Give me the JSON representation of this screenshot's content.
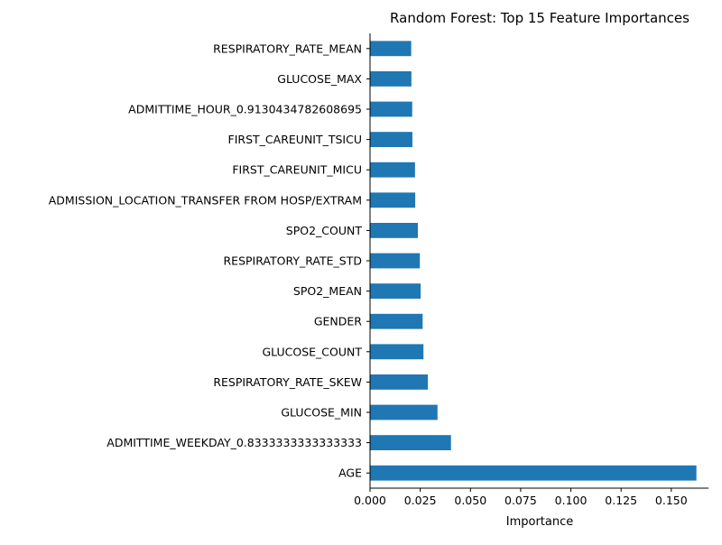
{
  "chart_data": {
    "type": "bar",
    "orientation": "horizontal",
    "title": "Random Forest: Top 15 Feature Importances",
    "xlabel": "Importance",
    "ylabel": "",
    "xlim": [
      0.0,
      0.1685
    ],
    "xticks": [
      0.0,
      0.025,
      0.05,
      0.075,
      0.1,
      0.125,
      0.15
    ],
    "xtick_labels": [
      "0.000",
      "0.025",
      "0.050",
      "0.075",
      "0.100",
      "0.125",
      "0.150"
    ],
    "grid": false,
    "bar_color": "#1f77b4",
    "categories": [
      "RESPIRATORY_RATE_MEAN",
      "GLUCOSE_MAX",
      "ADMITTIME_HOUR_0.9130434782608695",
      "FIRST_CAREUNIT_TSICU",
      "FIRST_CAREUNIT_MICU",
      "ADMISSION_LOCATION_TRANSFER FROM HOSP/EXTRAM",
      "SPO2_COUNT",
      "RESPIRATORY_RATE_STD",
      "SPO2_MEAN",
      "GENDER",
      "GLUCOSE_COUNT",
      "RESPIRATORY_RATE_SKEW",
      "GLUCOSE_MIN",
      "ADMITTIME_WEEKDAY_0.8333333333333333",
      "AGE"
    ],
    "values": [
      0.0205,
      0.0206,
      0.021,
      0.0211,
      0.0224,
      0.0225,
      0.0238,
      0.0248,
      0.0252,
      0.0262,
      0.0266,
      0.0288,
      0.0336,
      0.0403,
      0.1625
    ]
  }
}
